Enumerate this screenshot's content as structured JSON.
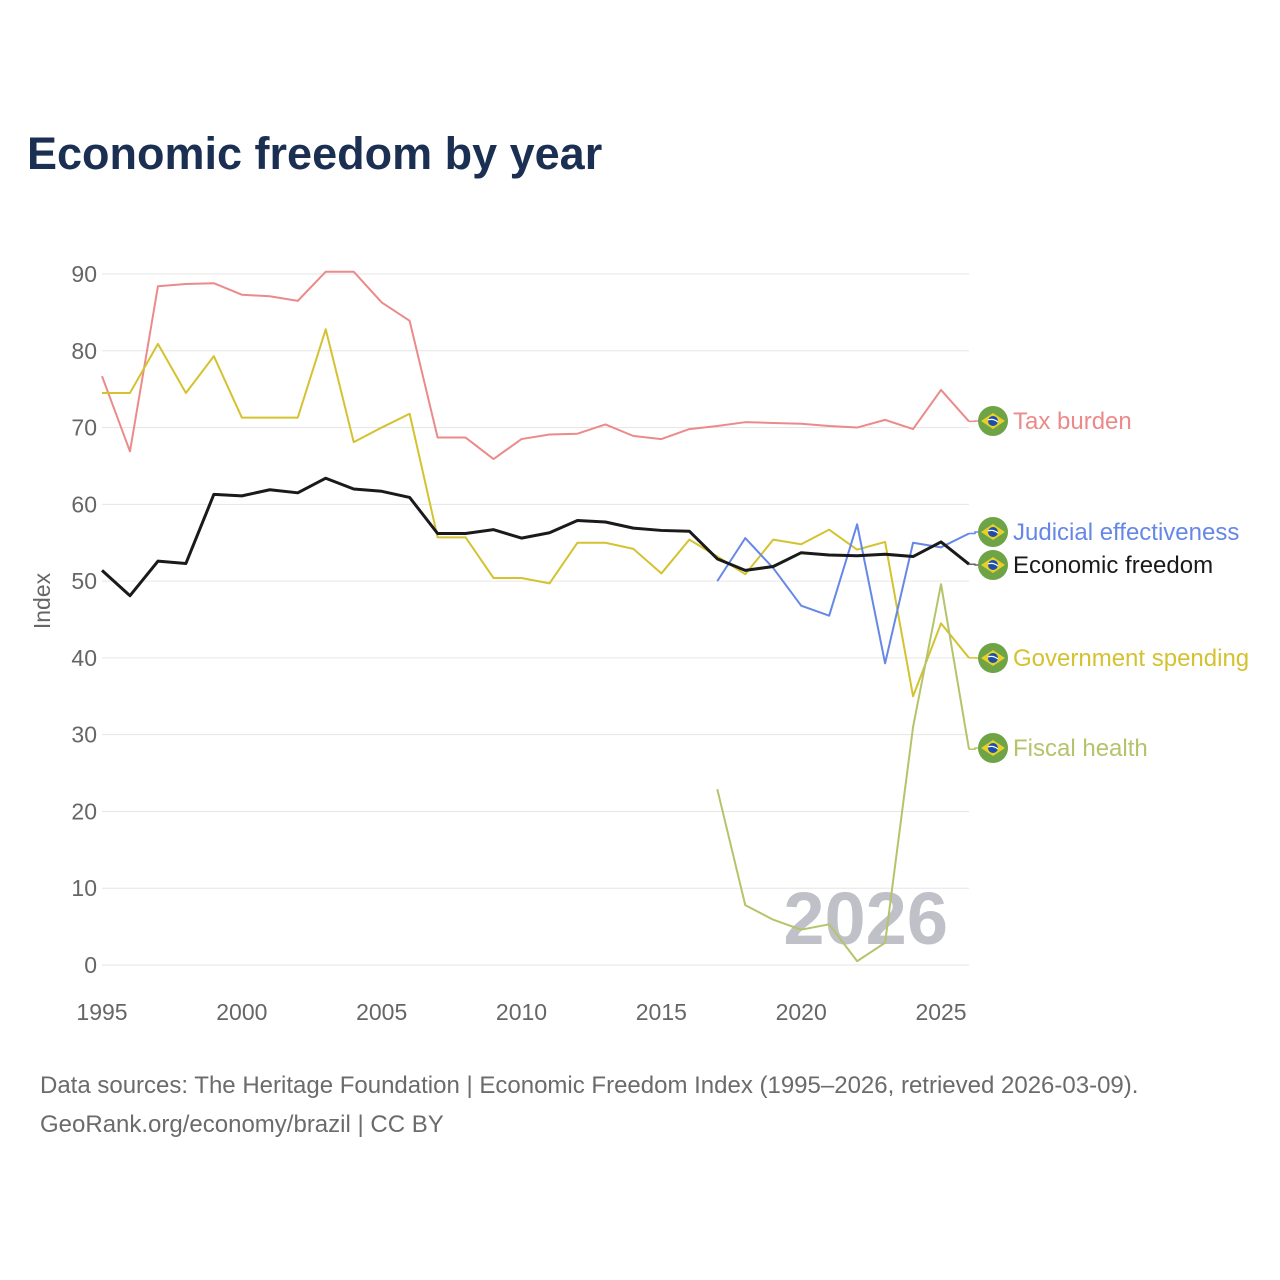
{
  "title": "Economic freedom by year",
  "footer": {
    "line1": "Data sources: The Heritage Foundation | Economic Freedom Index (1995–2026, retrieved 2026-03-09).",
    "line2": "GeoRank.org/economy/brazil | CC BY"
  },
  "chart_data": {
    "type": "line",
    "title": "Economic freedom by year",
    "xlabel": "",
    "ylabel": "Index",
    "xlim": [
      1995,
      2026
    ],
    "ylim": [
      0,
      90
    ],
    "x_ticks": [
      "1995",
      "2000",
      "2005",
      "2010",
      "2015",
      "2020",
      "2025"
    ],
    "y_ticks": [
      "0",
      "10",
      "20",
      "30",
      "40",
      "50",
      "60",
      "70",
      "80",
      "90"
    ],
    "grid": true,
    "year_watermark": "2026",
    "legend_placement": "right, labels at line ends with flag icons",
    "legend_icon": "brazil-flag-icon",
    "series": [
      {
        "name": "Tax burden",
        "color": "#ec8a8a",
        "start": 1995,
        "values": [
          76.7,
          66.9,
          88.4,
          88.7,
          88.8,
          87.3,
          87.1,
          86.5,
          90.3,
          90.3,
          86.3,
          83.9,
          68.7,
          68.7,
          65.9,
          68.5,
          69.1,
          69.2,
          70.4,
          68.9,
          68.5,
          69.8,
          70.2,
          70.7,
          70.6,
          70.5,
          70.2,
          70.0,
          71.0,
          69.8,
          74.9,
          70.8
        ]
      },
      {
        "name": "Government spending",
        "color": "#d4c230",
        "start": 1995,
        "values": [
          74.5,
          74.5,
          80.9,
          74.5,
          79.3,
          71.3,
          71.3,
          71.3,
          82.8,
          68.1,
          70.0,
          71.8,
          55.7,
          55.7,
          50.4,
          50.4,
          49.7,
          55.0,
          55.0,
          54.2,
          51.0,
          55.4,
          53.2,
          50.9,
          55.4,
          54.8,
          56.7,
          54.1,
          55.1,
          35.0,
          44.5,
          40.0
        ]
      },
      {
        "name": "Economic freedom",
        "color": "#1a1a1a",
        "start": 1995,
        "values": [
          51.4,
          48.1,
          52.6,
          52.3,
          61.3,
          61.1,
          61.9,
          61.5,
          63.4,
          62.0,
          61.7,
          60.9,
          56.2,
          56.2,
          56.7,
          55.6,
          56.3,
          57.9,
          57.7,
          56.9,
          56.6,
          56.5,
          52.9,
          51.4,
          51.9,
          53.7,
          53.4,
          53.3,
          53.5,
          53.2,
          55.1,
          52.2
        ]
      },
      {
        "name": "Judicial effectiveness",
        "color": "#6587e8",
        "start": 2017,
        "values": [
          50.0,
          55.6,
          51.7,
          46.8,
          45.5,
          57.4,
          39.3,
          55.0,
          54.4,
          56.2
        ]
      },
      {
        "name": "Fiscal health",
        "color": "#b3c46a",
        "start": 2017,
        "values": [
          22.9,
          7.8,
          5.9,
          4.6,
          5.3,
          0.5,
          2.9,
          31.0,
          49.6,
          28.1
        ]
      }
    ]
  }
}
